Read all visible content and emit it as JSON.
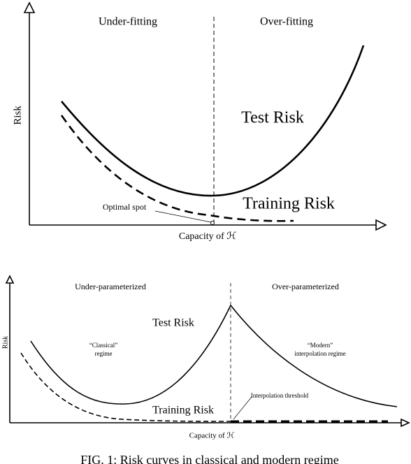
{
  "top_panel": {
    "left_label": "Under-fitting",
    "right_label": "Over-fitting",
    "y_axis": "Risk",
    "x_axis": "Capacity of ℋ",
    "test_label": "Test Risk",
    "training_label": "Training Risk",
    "optimal_label": "Optimal spot"
  },
  "bottom_panel": {
    "left_label": "Under-parameterized",
    "right_label": "Over-parameterized",
    "y_axis": "Risk",
    "x_axis": "Capacity of ℋ",
    "test_label": "Test Risk",
    "training_label": "Training Risk",
    "classical_line1": "“Classical”",
    "classical_line2": "regime",
    "modern_line1": "“Modern”",
    "modern_line2": "interpolation regime",
    "threshold_label": "Interpolation threshold"
  },
  "caption": "FIG. 1: Risk curves in classical and modern regime"
}
